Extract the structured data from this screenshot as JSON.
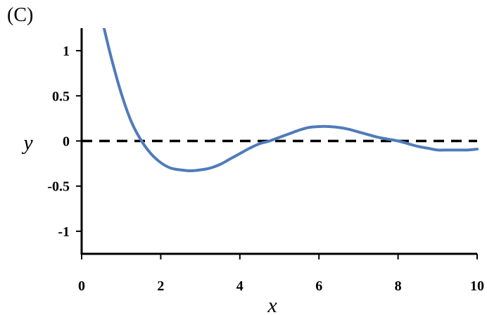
{
  "panel_label": "(C)",
  "colors": {
    "curve": "#4f7bbb",
    "axis": "#000000",
    "reference_line": "#000000"
  },
  "chart_data": {
    "type": "line",
    "title": "",
    "xlabel": "x",
    "ylabel": "y",
    "xlim": [
      0,
      10
    ],
    "ylim": [
      -1.25,
      1.25
    ],
    "grid": false,
    "x_ticks": [
      0,
      2,
      4,
      6,
      8,
      10
    ],
    "x_tick_labels": [
      "0",
      "2",
      "4",
      "6",
      "8",
      "10"
    ],
    "y_ticks": [
      1,
      0.5,
      0,
      -0.5,
      -1
    ],
    "y_tick_labels": [
      "1",
      "0.5",
      "0",
      "-0.5",
      "-1"
    ],
    "reference_lines": [
      {
        "axis": "y",
        "value": 0,
        "style": "dashed"
      }
    ],
    "series": [
      {
        "x": [
          0.55,
          0.75,
          1.0,
          1.25,
          1.5,
          1.75,
          2.0,
          2.25,
          2.5,
          2.75,
          3.0,
          3.25,
          3.5,
          3.75,
          4.0,
          4.25,
          4.5,
          4.75,
          5.0,
          5.25,
          5.5,
          5.75,
          6.0,
          6.25,
          6.5,
          6.75,
          7.0,
          7.25,
          7.5,
          7.75,
          8.0,
          8.25,
          8.5,
          8.75,
          9.0,
          9.25,
          9.5,
          9.75,
          10.0
        ],
        "y": [
          1.28,
          0.92,
          0.53,
          0.22,
          0.01,
          -0.14,
          -0.24,
          -0.3,
          -0.32,
          -0.33,
          -0.32,
          -0.3,
          -0.26,
          -0.2,
          -0.14,
          -0.08,
          -0.03,
          0.0,
          0.04,
          0.08,
          0.12,
          0.15,
          0.16,
          0.16,
          0.15,
          0.13,
          0.1,
          0.07,
          0.04,
          0.02,
          0.0,
          -0.03,
          -0.06,
          -0.08,
          -0.1,
          -0.1,
          -0.1,
          -0.1,
          -0.09
        ]
      }
    ]
  }
}
